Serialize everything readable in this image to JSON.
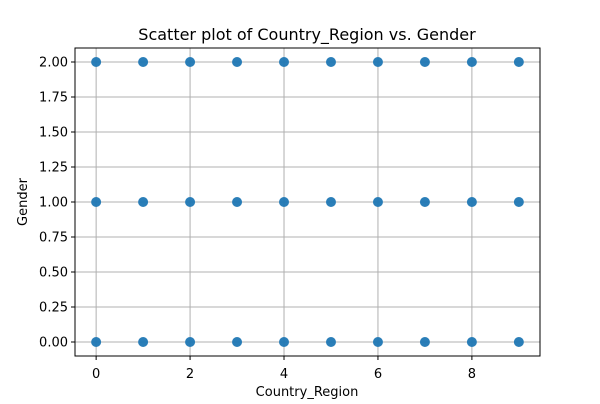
{
  "chart_data": {
    "type": "scatter",
    "title": "Scatter plot of Country_Region vs. Gender",
    "xlabel": "Country_Region",
    "ylabel": "Gender",
    "xlim": [
      -0.45,
      9.45
    ],
    "ylim": [
      -0.1,
      2.1
    ],
    "xticks": [
      0,
      2,
      4,
      6,
      8
    ],
    "xtick_labels": [
      "0",
      "2",
      "4",
      "6",
      "8"
    ],
    "yticks": [
      0,
      0.25,
      0.5,
      0.75,
      1,
      1.25,
      1.5,
      1.75,
      2
    ],
    "ytick_labels": [
      "0.00",
      "0.25",
      "0.50",
      "0.75",
      "1.00",
      "1.25",
      "1.50",
      "1.75",
      "2.00"
    ],
    "grid": true,
    "marker_color": "#1f77b4",
    "points": [
      {
        "x": 0,
        "y": 0
      },
      {
        "x": 0,
        "y": 1
      },
      {
        "x": 0,
        "y": 2
      },
      {
        "x": 1,
        "y": 0
      },
      {
        "x": 1,
        "y": 1
      },
      {
        "x": 1,
        "y": 2
      },
      {
        "x": 2,
        "y": 0
      },
      {
        "x": 2,
        "y": 1
      },
      {
        "x": 2,
        "y": 2
      },
      {
        "x": 3,
        "y": 0
      },
      {
        "x": 3,
        "y": 1
      },
      {
        "x": 3,
        "y": 2
      },
      {
        "x": 4,
        "y": 0
      },
      {
        "x": 4,
        "y": 1
      },
      {
        "x": 4,
        "y": 2
      },
      {
        "x": 5,
        "y": 0
      },
      {
        "x": 5,
        "y": 1
      },
      {
        "x": 5,
        "y": 2
      },
      {
        "x": 6,
        "y": 0
      },
      {
        "x": 6,
        "y": 1
      },
      {
        "x": 6,
        "y": 2
      },
      {
        "x": 7,
        "y": 0
      },
      {
        "x": 7,
        "y": 1
      },
      {
        "x": 7,
        "y": 2
      },
      {
        "x": 8,
        "y": 0
      },
      {
        "x": 8,
        "y": 1
      },
      {
        "x": 8,
        "y": 2
      },
      {
        "x": 9,
        "y": 0
      },
      {
        "x": 9,
        "y": 1
      },
      {
        "x": 9,
        "y": 2
      }
    ]
  }
}
